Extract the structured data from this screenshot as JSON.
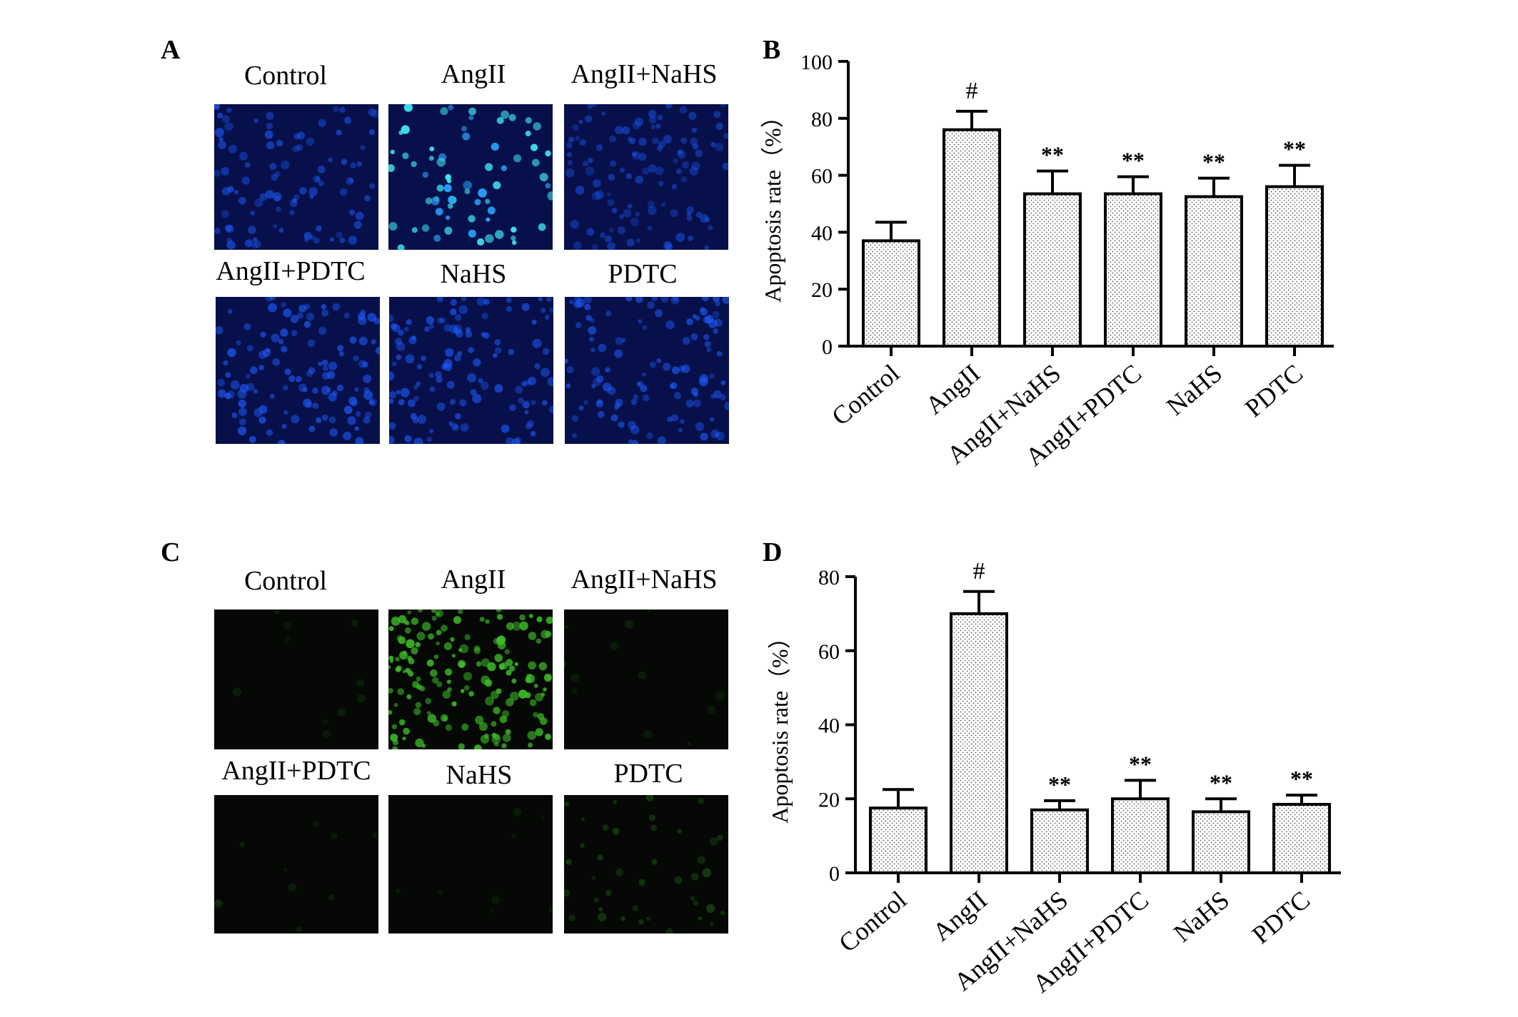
{
  "panels": {
    "A": {
      "letter": "A",
      "labels": [
        "Control",
        "AngII",
        "AngII+NaHS",
        "AngII+PDTC",
        "NaHS",
        "PDTC"
      ],
      "stain_color": "#1e5cff",
      "background_color": "#07104a"
    },
    "B": {
      "letter": "B"
    },
    "C": {
      "letter": "C",
      "labels": [
        "Control",
        "AngII",
        "AngII+NaHS",
        "AngII+PDTC",
        "NaHS",
        "PDTC"
      ],
      "stain_color": "#3fbf2a",
      "background_color": "#050805"
    },
    "D": {
      "letter": "D"
    }
  },
  "chart_data": [
    {
      "panel": "B",
      "type": "bar",
      "categories": [
        "Control",
        "AngII",
        "AngII+NaHS",
        "AngII+PDTC",
        "NaHS",
        "PDTC"
      ],
      "values": [
        37,
        76,
        53.5,
        53.5,
        52.5,
        56
      ],
      "error_bars": [
        6.5,
        6.5,
        8,
        6,
        6.5,
        7.5
      ],
      "annotations": [
        "",
        "#",
        "**",
        "**",
        "**",
        "**"
      ],
      "ylabel": "Apoptosis  rate（%）",
      "ylim": [
        0,
        100
      ],
      "yticks": [
        0,
        20,
        40,
        60,
        80,
        100
      ],
      "bar_pattern": "stippled"
    },
    {
      "panel": "D",
      "type": "bar",
      "categories": [
        "Control",
        "AngII",
        "AngII+NaHS",
        "AngII+PDTC",
        "NaHS",
        "PDTC"
      ],
      "values": [
        17.5,
        70,
        17,
        20,
        16.5,
        18.5
      ],
      "error_bars": [
        5,
        6,
        2.5,
        5,
        3.5,
        2.5
      ],
      "annotations": [
        "",
        "#",
        "**",
        "**",
        "**",
        "**"
      ],
      "ylabel": "Apoptosis  rate（%）",
      "ylim": [
        0,
        80
      ],
      "yticks": [
        0,
        20,
        40,
        60,
        80
      ],
      "bar_pattern": "stippled"
    }
  ]
}
